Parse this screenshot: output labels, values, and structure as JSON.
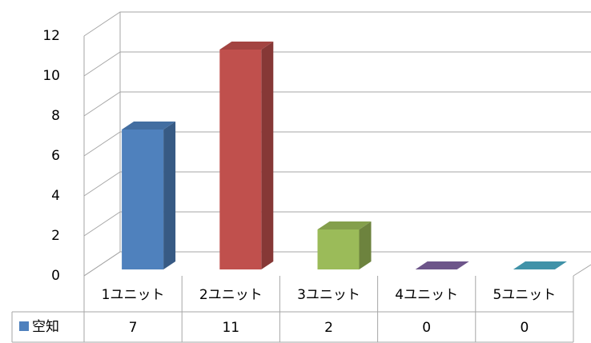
{
  "chart_data": {
    "type": "bar",
    "categories": [
      "1ユニット",
      "2ユニット",
      "3ユニット",
      "4ユニット",
      "5ユニット"
    ],
    "series": [
      {
        "name": "空知",
        "color": "#4f81bd",
        "values": [
          7,
          11,
          2,
          0,
          0
        ]
      }
    ],
    "point_colors": [
      "#4f81bd",
      "#c0504d",
      "#9bbb59",
      "#8064a2",
      "#4bacc6"
    ],
    "ylim": [
      0,
      12
    ],
    "yticks": [
      0,
      2,
      4,
      6,
      8,
      10,
      12
    ],
    "grid": true
  }
}
